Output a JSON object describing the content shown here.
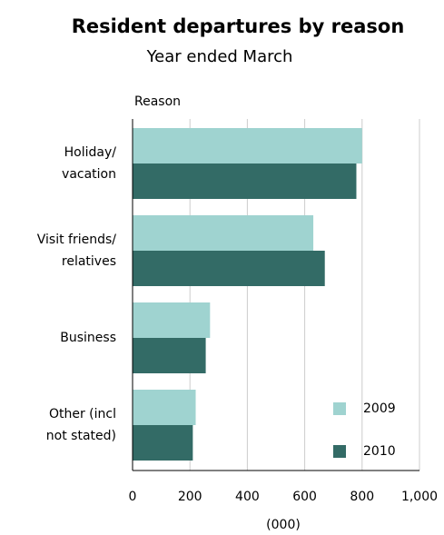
{
  "chart_data": {
    "type": "hbar",
    "title": "Resident departures by reason",
    "subtitle": "Year ended March",
    "y_label": "Reason",
    "x_label": "(000)",
    "categories": [
      "Holiday/\nvacation",
      "Visit friends/\nrelatives",
      "Business",
      "Other (incl\nnot stated)"
    ],
    "series": [
      {
        "name": "2009",
        "color": "#9fd3d0",
        "values": [
          800,
          630,
          270,
          220
        ]
      },
      {
        "name": "2010",
        "color": "#336b66",
        "values": [
          780,
          670,
          255,
          210
        ]
      }
    ],
    "xlim": [
      0,
      1000
    ],
    "xticks": [
      0,
      200,
      400,
      600,
      800,
      {
        "value": 1000,
        "label": "1,000"
      }
    ],
    "grid": true,
    "legend": "lower right"
  }
}
